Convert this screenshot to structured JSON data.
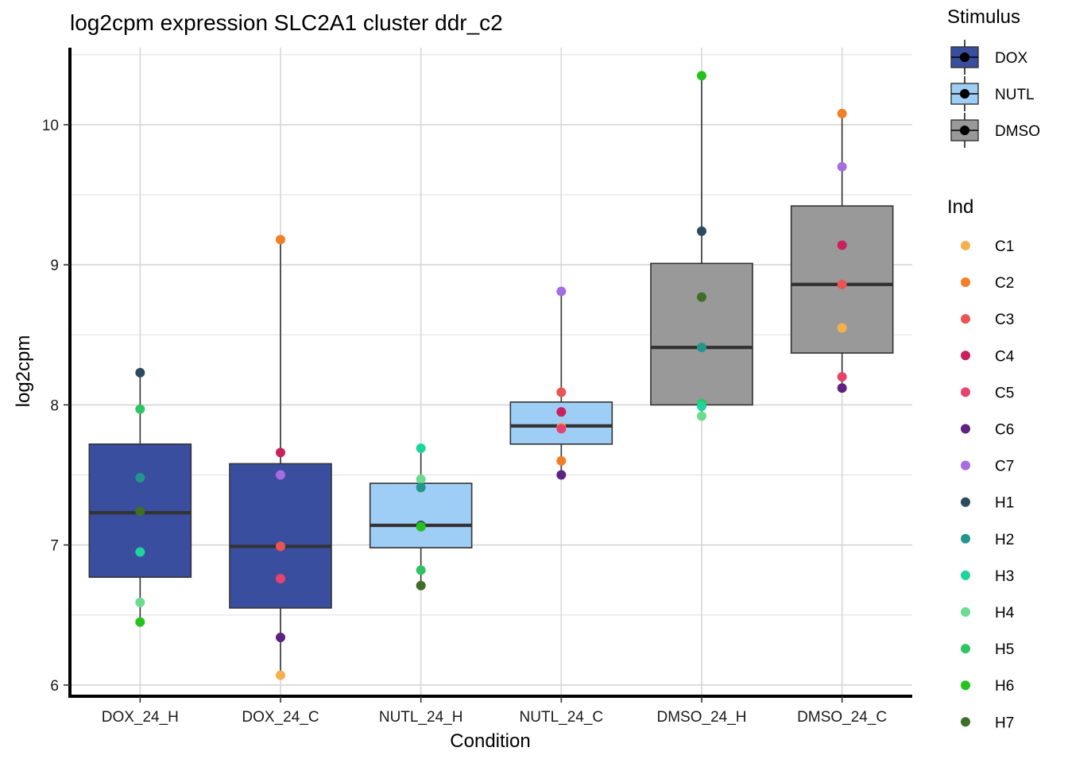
{
  "chart_data": {
    "type": "box",
    "title": "log2cpm expression SLC2A1 cluster ddr_c2",
    "xlabel": "Condition",
    "ylabel": "log2cpm",
    "ylim": [
      5.92,
      10.55
    ],
    "yticks": [
      6,
      7,
      8,
      9,
      10
    ],
    "grid": true,
    "categories": [
      "DOX_24_H",
      "DOX_24_C",
      "NUTL_24_H",
      "NUTL_24_C",
      "DMSO_24_H",
      "DMSO_24_C"
    ],
    "boxes": [
      {
        "category": "DOX_24_H",
        "stimulus": "DOX",
        "min": 6.45,
        "q1": 6.77,
        "median": 7.23,
        "q3": 7.72,
        "max": 8.23
      },
      {
        "category": "DOX_24_C",
        "stimulus": "DOX",
        "min": 6.07,
        "q1": 6.55,
        "median": 6.99,
        "q3": 7.58,
        "max": 9.18
      },
      {
        "category": "NUTL_24_H",
        "stimulus": "NUTL",
        "min": 6.71,
        "q1": 6.98,
        "median": 7.14,
        "q3": 7.44,
        "max": 7.69
      },
      {
        "category": "NUTL_24_C",
        "stimulus": "NUTL",
        "min": 7.5,
        "q1": 7.72,
        "median": 7.85,
        "q3": 8.02,
        "max": 8.81
      },
      {
        "category": "DMSO_24_H",
        "stimulus": "DMSO",
        "min": 7.92,
        "q1": 8.0,
        "median": 8.41,
        "q3": 9.01,
        "max": 10.35
      },
      {
        "category": "DMSO_24_C",
        "stimulus": "DMSO",
        "min": 8.12,
        "q1": 8.37,
        "median": 8.86,
        "q3": 9.42,
        "max": 10.08
      }
    ],
    "points": [
      {
        "category": "DOX_24_H",
        "ind": "H1",
        "value": 8.23
      },
      {
        "category": "DOX_24_H",
        "ind": "H5",
        "value": 7.97
      },
      {
        "category": "DOX_24_H",
        "ind": "H2",
        "value": 7.48
      },
      {
        "category": "DOX_24_H",
        "ind": "H7",
        "value": 7.24
      },
      {
        "category": "DOX_24_H",
        "ind": "H3",
        "value": 6.95
      },
      {
        "category": "DOX_24_H",
        "ind": "H4",
        "value": 6.59
      },
      {
        "category": "DOX_24_H",
        "ind": "H6",
        "value": 6.45
      },
      {
        "category": "DOX_24_C",
        "ind": "C2",
        "value": 9.18
      },
      {
        "category": "DOX_24_C",
        "ind": "C4",
        "value": 7.66
      },
      {
        "category": "DOX_24_C",
        "ind": "C7",
        "value": 7.5
      },
      {
        "category": "DOX_24_C",
        "ind": "C3",
        "value": 6.99
      },
      {
        "category": "DOX_24_C",
        "ind": "C5",
        "value": 6.76
      },
      {
        "category": "DOX_24_C",
        "ind": "C6",
        "value": 6.34
      },
      {
        "category": "DOX_24_C",
        "ind": "C1",
        "value": 6.07
      },
      {
        "category": "NUTL_24_H",
        "ind": "H3",
        "value": 7.69
      },
      {
        "category": "NUTL_24_H",
        "ind": "H4",
        "value": 7.47
      },
      {
        "category": "NUTL_24_H",
        "ind": "H2",
        "value": 7.41
      },
      {
        "category": "NUTL_24_H",
        "ind": "H1",
        "value": 7.14
      },
      {
        "category": "NUTL_24_H",
        "ind": "H6",
        "value": 7.13
      },
      {
        "category": "NUTL_24_H",
        "ind": "H5",
        "value": 6.82
      },
      {
        "category": "NUTL_24_H",
        "ind": "H7",
        "value": 6.71
      },
      {
        "category": "NUTL_24_C",
        "ind": "C7",
        "value": 8.81
      },
      {
        "category": "NUTL_24_C",
        "ind": "C3",
        "value": 8.09
      },
      {
        "category": "NUTL_24_C",
        "ind": "C4",
        "value": 7.95
      },
      {
        "category": "NUTL_24_C",
        "ind": "C1",
        "value": 7.84
      },
      {
        "category": "NUTL_24_C",
        "ind": "C5",
        "value": 7.83
      },
      {
        "category": "NUTL_24_C",
        "ind": "C2",
        "value": 7.6
      },
      {
        "category": "NUTL_24_C",
        "ind": "C6",
        "value": 7.5
      },
      {
        "category": "DMSO_24_H",
        "ind": "H6",
        "value": 10.35
      },
      {
        "category": "DMSO_24_H",
        "ind": "H1",
        "value": 9.24
      },
      {
        "category": "DMSO_24_H",
        "ind": "H7",
        "value": 8.77
      },
      {
        "category": "DMSO_24_H",
        "ind": "H2",
        "value": 8.41
      },
      {
        "category": "DMSO_24_H",
        "ind": "H5",
        "value": 8.01
      },
      {
        "category": "DMSO_24_H",
        "ind": "H3",
        "value": 7.99
      },
      {
        "category": "DMSO_24_H",
        "ind": "H4",
        "value": 7.92
      },
      {
        "category": "DMSO_24_C",
        "ind": "C2",
        "value": 10.08
      },
      {
        "category": "DMSO_24_C",
        "ind": "C7",
        "value": 9.7
      },
      {
        "category": "DMSO_24_C",
        "ind": "C4",
        "value": 9.14
      },
      {
        "category": "DMSO_24_C",
        "ind": "C3",
        "value": 8.86
      },
      {
        "category": "DMSO_24_C",
        "ind": "C1",
        "value": 8.55
      },
      {
        "category": "DMSO_24_C",
        "ind": "C5",
        "value": 8.2
      },
      {
        "category": "DMSO_24_C",
        "ind": "C6",
        "value": 8.12
      }
    ],
    "legend_stimulus": {
      "title": "Stimulus",
      "entries": [
        {
          "label": "DOX",
          "color": "#3a4ea0"
        },
        {
          "label": "NUTL",
          "color": "#9ecdf5"
        },
        {
          "label": "DMSO",
          "color": "#999999"
        }
      ]
    },
    "legend_ind": {
      "title": "Ind",
      "entries": [
        {
          "label": "C1",
          "color": "#f6b04a"
        },
        {
          "label": "C2",
          "color": "#f07f26"
        },
        {
          "label": "C3",
          "color": "#ea5454"
        },
        {
          "label": "C4",
          "color": "#c9215e"
        },
        {
          "label": "C5",
          "color": "#e8426f"
        },
        {
          "label": "C6",
          "color": "#5e2380"
        },
        {
          "label": "C7",
          "color": "#a66de0"
        },
        {
          "label": "H1",
          "color": "#2d4a5e"
        },
        {
          "label": "H2",
          "color": "#22958d"
        },
        {
          "label": "H3",
          "color": "#1fd4a0"
        },
        {
          "label": "H4",
          "color": "#6ddb8f"
        },
        {
          "label": "H5",
          "color": "#2fc463"
        },
        {
          "label": "H6",
          "color": "#26c21e"
        },
        {
          "label": "H7",
          "color": "#3f6e27"
        }
      ]
    }
  }
}
